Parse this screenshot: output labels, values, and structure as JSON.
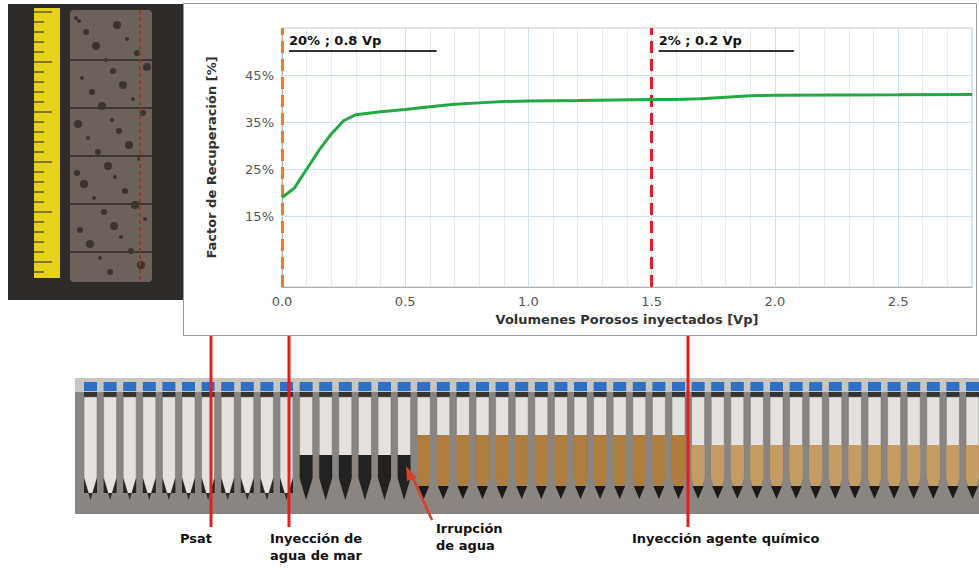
{
  "chart_data": {
    "type": "line",
    "x_label": "Volumenes Porosos inyectados [Vp]",
    "y_label": "Factor de Recuperación [%]",
    "x": [
      0,
      0.02,
      0.05,
      0.1,
      0.15,
      0.2,
      0.25,
      0.3,
      0.4,
      0.5,
      0.6,
      0.7,
      0.8,
      0.9,
      1.0,
      1.2,
      1.5,
      1.6,
      1.7,
      1.8,
      1.9,
      2.0,
      2.5,
      2.8
    ],
    "series": [
      {
        "color": "#22a845",
        "line_style": "solid",
        "values": [
          19.0,
          19.8,
          21.0,
          25.0,
          29.0,
          32.5,
          35.3,
          36.6,
          37.2,
          37.7,
          38.3,
          38.8,
          39.1,
          39.4,
          39.5,
          39.6,
          39.8,
          39.8,
          40.0,
          40.3,
          40.6,
          40.7,
          40.8,
          40.9
        ]
      }
    ],
    "xlim": [
      0,
      2.8
    ],
    "xticks": [
      {
        "value": 0,
        "label": "0.0"
      },
      0.5,
      {
        "value": 1,
        "label": "1.0"
      },
      1.5,
      {
        "value": 2,
        "label": "2.0"
      },
      2.5
    ],
    "ylim": [
      0,
      55
    ],
    "yticks": [
      {
        "value": 15,
        "label": "15%"
      },
      {
        "value": 25,
        "label": "25%"
      },
      {
        "value": 35,
        "label": "35%"
      },
      {
        "value": 45,
        "label": "45%"
      }
    ],
    "grid": true,
    "annotations": [
      {
        "text": "20% ; 0.8 Vp",
        "x": 0,
        "color": "#ee7a2a",
        "line_style": "dashed"
      },
      {
        "text": "2% ; 0.2 Vp",
        "x": 1.5,
        "color": "#e3202a",
        "line_style": "dashed"
      }
    ],
    "photo_labels": [
      "Psat",
      "Inyección de agua de mar",
      "Irrupción de agua",
      "Inyección agente químico"
    ]
  }
}
